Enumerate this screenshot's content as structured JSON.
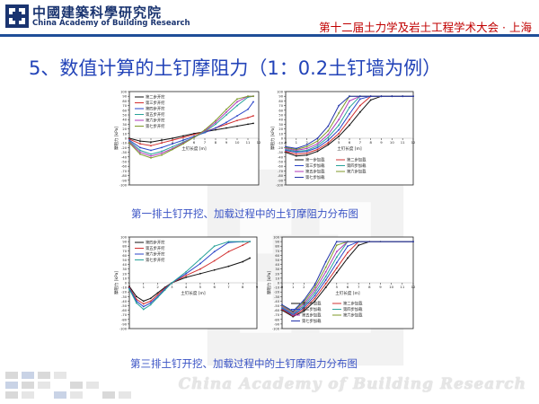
{
  "header": {
    "logo_cn": "中國建築科學研究院",
    "logo_en": "China Academy of Building Research",
    "conference": "第十二届土力学及岩土工程学术大会 · 上海"
  },
  "title": "5、数值计算的土钉摩阻力（1：0.2土钉墙为例）",
  "captions": {
    "row1": "第一排土钉开挖、加载过程中的土钉摩阻力分布图",
    "row2": "第三排土钉开挖、加载过程中的土钉摩阻力分布图"
  },
  "footer": {
    "watermark": "China Academy of Building Research"
  },
  "colors": {
    "title": "#2243b8",
    "conference": "#c00000",
    "logo": "#1a3470",
    "rule": "#1f4e98"
  },
  "chart_data": [
    {
      "type": "line",
      "xlabel": "土钉长度 [m]",
      "ylabel": "摩阻力 [kPa]",
      "xlim": [
        0,
        12
      ],
      "ylim": [
        -100,
        100
      ],
      "xticks": [
        0,
        1,
        2,
        3,
        4,
        5,
        6,
        7,
        8,
        9,
        10,
        11,
        12
      ],
      "yticks": [
        -100,
        -90,
        -80,
        -70,
        -60,
        -50,
        -40,
        -30,
        -20,
        -10,
        0,
        10,
        20,
        30,
        40,
        50,
        60,
        70,
        80,
        90,
        100
      ],
      "legend_position": "top-left",
      "series": [
        {
          "name": "第二步开挖",
          "color": "#111111",
          "x": [
            0,
            1,
            2,
            3,
            4,
            5,
            6,
            7,
            8,
            9,
            10,
            11,
            11.5
          ],
          "y": [
            0,
            -6,
            -8,
            -4,
            0,
            5,
            10,
            14,
            18,
            22,
            26,
            30,
            32
          ]
        },
        {
          "name": "第三步开挖",
          "color": "#d23030",
          "x": [
            0,
            1,
            2,
            3,
            4,
            5,
            6,
            7,
            8,
            9,
            10,
            11,
            11.5
          ],
          "y": [
            -2,
            -12,
            -16,
            -10,
            -4,
            2,
            8,
            14,
            22,
            30,
            38,
            44,
            48
          ]
        },
        {
          "name": "第四步开挖",
          "color": "#2b44c8",
          "x": [
            0,
            1,
            2,
            3,
            4,
            5,
            6,
            7,
            8,
            9,
            10,
            11,
            11.5
          ],
          "y": [
            -4,
            -20,
            -26,
            -20,
            -12,
            -4,
            4,
            12,
            22,
            34,
            48,
            62,
            78
          ]
        },
        {
          "name": "第五步开挖",
          "color": "#2aa39a",
          "x": [
            0,
            1,
            2,
            3,
            4,
            5,
            6,
            7,
            8,
            9,
            10,
            11,
            11.5
          ],
          "y": [
            -6,
            -26,
            -34,
            -28,
            -18,
            -8,
            2,
            14,
            30,
            50,
            70,
            88,
            90
          ]
        },
        {
          "name": "第六步开挖",
          "color": "#b03ab8",
          "x": [
            0,
            1,
            2,
            3,
            4,
            5,
            6,
            7,
            8,
            9,
            10,
            11,
            11.5
          ],
          "y": [
            -8,
            -30,
            -38,
            -32,
            -22,
            -10,
            2,
            16,
            34,
            56,
            78,
            90,
            90
          ]
        },
        {
          "name": "第七步开挖",
          "color": "#7f9a2a",
          "x": [
            0,
            1,
            2,
            3,
            4,
            5,
            6,
            7,
            8,
            9,
            10,
            11,
            11.5
          ],
          "y": [
            -10,
            -34,
            -42,
            -36,
            -24,
            -12,
            2,
            18,
            38,
            62,
            84,
            90,
            90
          ]
        }
      ]
    },
    {
      "type": "line",
      "xlabel": "土钉长度 [m]",
      "ylabel": "摩阻力 [kPa]",
      "xlim": [
        0,
        12
      ],
      "ylim": [
        -100,
        100
      ],
      "xticks": [
        0,
        1,
        2,
        3,
        4,
        5,
        6,
        7,
        8,
        9,
        10,
        11,
        12
      ],
      "yticks": [
        -100,
        -90,
        -80,
        -70,
        -60,
        -50,
        -40,
        -30,
        -20,
        -10,
        0,
        10,
        20,
        30,
        40,
        50,
        60,
        70,
        80,
        90,
        100
      ],
      "legend_position": "bottom",
      "series": [
        {
          "name": "第一步加载",
          "color": "#111111",
          "x": [
            0,
            1,
            2,
            3,
            4,
            5,
            6,
            7,
            8,
            9,
            10,
            11,
            12
          ],
          "y": [
            -30,
            -38,
            -36,
            -28,
            -14,
            4,
            28,
            56,
            82,
            90,
            90,
            90,
            90
          ]
        },
        {
          "name": "第二步加载",
          "color": "#d23030",
          "x": [
            0,
            1,
            2,
            3,
            4,
            5,
            6,
            7,
            8,
            9,
            10,
            11,
            12
          ],
          "y": [
            -28,
            -34,
            -32,
            -24,
            -10,
            10,
            40,
            70,
            90,
            90,
            90,
            90,
            90
          ]
        },
        {
          "name": "第三步加载",
          "color": "#2b44c8",
          "x": [
            0,
            1,
            2,
            3,
            4,
            5,
            6,
            7,
            8,
            9,
            10,
            11,
            12
          ],
          "y": [
            -26,
            -30,
            -28,
            -20,
            -4,
            18,
            52,
            84,
            90,
            90,
            90,
            90,
            90
          ]
        },
        {
          "name": "第四步加载",
          "color": "#2aa39a",
          "x": [
            0,
            1,
            2,
            3,
            4,
            5,
            6,
            7,
            8,
            9,
            10,
            11,
            12
          ],
          "y": [
            -24,
            -28,
            -26,
            -16,
            2,
            28,
            66,
            90,
            90,
            90,
            90,
            90,
            90
          ]
        },
        {
          "name": "第五步加载",
          "color": "#b03ab8",
          "x": [
            0,
            1,
            2,
            3,
            4,
            5,
            6,
            7,
            8,
            9,
            10,
            11,
            12
          ],
          "y": [
            -22,
            -26,
            -22,
            -12,
            8,
            40,
            80,
            90,
            90,
            90,
            90,
            90,
            90
          ]
        },
        {
          "name": "第六步加载",
          "color": "#7f9a2a",
          "x": [
            0,
            1,
            2,
            3,
            4,
            5,
            6,
            7,
            8,
            9,
            10,
            11,
            12
          ],
          "y": [
            -20,
            -24,
            -18,
            -6,
            16,
            54,
            90,
            90,
            90,
            90,
            90,
            90,
            90
          ]
        },
        {
          "name": "第七步加载",
          "color": "#2233aa",
          "x": [
            0,
            1,
            2,
            3,
            4,
            5,
            6,
            7,
            8,
            9,
            10,
            11,
            12
          ],
          "y": [
            -18,
            -22,
            -14,
            0,
            26,
            70,
            90,
            90,
            90,
            90,
            90,
            90,
            90
          ]
        }
      ]
    },
    {
      "type": "line",
      "xlabel": "土钉长度 [m]",
      "ylabel": "摩阻力 [kPa]",
      "xlim": [
        0,
        9
      ],
      "ylim": [
        -100,
        100
      ],
      "xticks": [
        0,
        1,
        2,
        3,
        4,
        5,
        6,
        7,
        8,
        9
      ],
      "yticks": [
        -100,
        -90,
        -80,
        -70,
        -60,
        -50,
        -40,
        -30,
        -20,
        -10,
        0,
        10,
        20,
        30,
        40,
        50,
        60,
        70,
        80,
        90,
        100
      ],
      "legend_position": "top-left",
      "series": [
        {
          "name": "第四步开挖",
          "color": "#111111",
          "x": [
            0,
            0.5,
            1,
            1.5,
            2,
            2.5,
            3,
            4,
            5,
            6,
            7,
            8,
            8.5
          ],
          "y": [
            -8,
            -30,
            -40,
            -34,
            -22,
            -10,
            0,
            12,
            20,
            28,
            36,
            46,
            54
          ]
        },
        {
          "name": "第五步开挖",
          "color": "#d23030",
          "x": [
            0,
            0.5,
            1,
            1.5,
            2,
            2.5,
            3,
            4,
            5,
            6,
            7,
            8,
            8.5
          ],
          "y": [
            -10,
            -36,
            -46,
            -40,
            -26,
            -12,
            0,
            16,
            30,
            48,
            68,
            82,
            90
          ]
        },
        {
          "name": "第六步开挖",
          "color": "#2b44c8",
          "x": [
            0,
            0.5,
            1,
            1.5,
            2,
            2.5,
            3,
            4,
            5,
            6,
            7,
            8,
            8.5
          ],
          "y": [
            -12,
            -40,
            -52,
            -44,
            -30,
            -14,
            0,
            20,
            42,
            68,
            88,
            90,
            90
          ]
        },
        {
          "name": "第七步开挖",
          "color": "#2aa39a",
          "x": [
            0,
            0.5,
            1,
            1.5,
            2,
            2.5,
            3,
            4,
            5,
            6,
            7,
            8,
            8.5
          ],
          "y": [
            -14,
            -44,
            -58,
            -48,
            -32,
            -16,
            0,
            24,
            52,
            80,
            90,
            90,
            90
          ]
        }
      ]
    },
    {
      "type": "line",
      "xlabel": "土钉长度 [m]",
      "ylabel": "摩阻力 [kPa]",
      "xlim": [
        0,
        12
      ],
      "ylim": [
        -100,
        100
      ],
      "xticks": [
        0,
        1,
        2,
        3,
        4,
        5,
        6,
        7,
        8,
        9,
        10,
        11,
        12
      ],
      "yticks": [
        -100,
        -90,
        -80,
        -70,
        -60,
        -50,
        -40,
        -30,
        -20,
        -10,
        0,
        10,
        20,
        30,
        40,
        50,
        60,
        70,
        80,
        90,
        100
      ],
      "legend_position": "bottom",
      "series": [
        {
          "name": "第一步加载",
          "color": "#111111",
          "x": [
            0,
            1,
            2,
            3,
            4,
            5,
            6,
            7,
            8,
            9,
            12
          ],
          "y": [
            -60,
            -74,
            -62,
            -40,
            -10,
            22,
            54,
            82,
            90,
            90,
            90
          ]
        },
        {
          "name": "第二步加载",
          "color": "#d23030",
          "x": [
            0,
            1,
            2,
            3,
            4,
            5,
            6,
            7,
            8,
            12
          ],
          "y": [
            -58,
            -72,
            -58,
            -34,
            -2,
            32,
            66,
            90,
            90,
            90
          ]
        },
        {
          "name": "第三步加载",
          "color": "#2b44c8",
          "x": [
            0,
            1,
            2,
            3,
            4,
            5,
            6,
            7,
            12
          ],
          "y": [
            -56,
            -70,
            -54,
            -28,
            6,
            44,
            80,
            90,
            90
          ]
        },
        {
          "name": "第四步加载",
          "color": "#2aa39a",
          "x": [
            0,
            1,
            2,
            3,
            4,
            5,
            6,
            7,
            12
          ],
          "y": [
            -54,
            -68,
            -50,
            -22,
            14,
            56,
            90,
            90,
            90
          ]
        },
        {
          "name": "第五步加载",
          "color": "#b03ab8",
          "x": [
            0,
            1,
            2,
            3,
            4,
            5,
            6,
            12
          ],
          "y": [
            -52,
            -66,
            -46,
            -16,
            24,
            68,
            90,
            90
          ]
        },
        {
          "name": "第六步加载",
          "color": "#7f9a2a",
          "x": [
            0,
            1,
            2,
            3,
            4,
            5,
            6,
            12
          ],
          "y": [
            -50,
            -64,
            -42,
            -10,
            34,
            82,
            90,
            90
          ]
        },
        {
          "name": "第七步加载",
          "color": "#2233aa",
          "x": [
            0,
            1,
            2,
            3,
            4,
            5,
            12
          ],
          "y": [
            -48,
            -62,
            -38,
            -4,
            46,
            90,
            90
          ]
        }
      ]
    }
  ]
}
